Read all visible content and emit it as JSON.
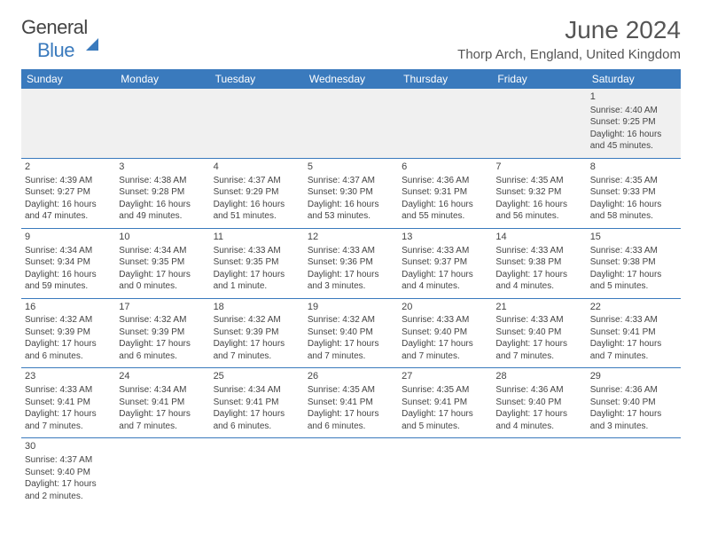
{
  "logo": {
    "text1": "General",
    "text2": "Blue"
  },
  "title": "June 2024",
  "location": "Thorp Arch, England, United Kingdom",
  "headers": [
    "Sunday",
    "Monday",
    "Tuesday",
    "Wednesday",
    "Thursday",
    "Friday",
    "Saturday"
  ],
  "colors": {
    "header_bg": "#3a7abd",
    "header_fg": "#ffffff",
    "rule": "#3a7abd",
    "text": "#444444",
    "firstrow_bg": "#f0f0f0"
  },
  "weeks": [
    [
      null,
      null,
      null,
      null,
      null,
      null,
      {
        "n": "1",
        "sr": "4:40 AM",
        "ss": "9:25 PM",
        "dl": "16 hours and 45 minutes."
      }
    ],
    [
      {
        "n": "2",
        "sr": "4:39 AM",
        "ss": "9:27 PM",
        "dl": "16 hours and 47 minutes."
      },
      {
        "n": "3",
        "sr": "4:38 AM",
        "ss": "9:28 PM",
        "dl": "16 hours and 49 minutes."
      },
      {
        "n": "4",
        "sr": "4:37 AM",
        "ss": "9:29 PM",
        "dl": "16 hours and 51 minutes."
      },
      {
        "n": "5",
        "sr": "4:37 AM",
        "ss": "9:30 PM",
        "dl": "16 hours and 53 minutes."
      },
      {
        "n": "6",
        "sr": "4:36 AM",
        "ss": "9:31 PM",
        "dl": "16 hours and 55 minutes."
      },
      {
        "n": "7",
        "sr": "4:35 AM",
        "ss": "9:32 PM",
        "dl": "16 hours and 56 minutes."
      },
      {
        "n": "8",
        "sr": "4:35 AM",
        "ss": "9:33 PM",
        "dl": "16 hours and 58 minutes."
      }
    ],
    [
      {
        "n": "9",
        "sr": "4:34 AM",
        "ss": "9:34 PM",
        "dl": "16 hours and 59 minutes."
      },
      {
        "n": "10",
        "sr": "4:34 AM",
        "ss": "9:35 PM",
        "dl": "17 hours and 0 minutes."
      },
      {
        "n": "11",
        "sr": "4:33 AM",
        "ss": "9:35 PM",
        "dl": "17 hours and 1 minute."
      },
      {
        "n": "12",
        "sr": "4:33 AM",
        "ss": "9:36 PM",
        "dl": "17 hours and 3 minutes."
      },
      {
        "n": "13",
        "sr": "4:33 AM",
        "ss": "9:37 PM",
        "dl": "17 hours and 4 minutes."
      },
      {
        "n": "14",
        "sr": "4:33 AM",
        "ss": "9:38 PM",
        "dl": "17 hours and 4 minutes."
      },
      {
        "n": "15",
        "sr": "4:33 AM",
        "ss": "9:38 PM",
        "dl": "17 hours and 5 minutes."
      }
    ],
    [
      {
        "n": "16",
        "sr": "4:32 AM",
        "ss": "9:39 PM",
        "dl": "17 hours and 6 minutes."
      },
      {
        "n": "17",
        "sr": "4:32 AM",
        "ss": "9:39 PM",
        "dl": "17 hours and 6 minutes."
      },
      {
        "n": "18",
        "sr": "4:32 AM",
        "ss": "9:39 PM",
        "dl": "17 hours and 7 minutes."
      },
      {
        "n": "19",
        "sr": "4:32 AM",
        "ss": "9:40 PM",
        "dl": "17 hours and 7 minutes."
      },
      {
        "n": "20",
        "sr": "4:33 AM",
        "ss": "9:40 PM",
        "dl": "17 hours and 7 minutes."
      },
      {
        "n": "21",
        "sr": "4:33 AM",
        "ss": "9:40 PM",
        "dl": "17 hours and 7 minutes."
      },
      {
        "n": "22",
        "sr": "4:33 AM",
        "ss": "9:41 PM",
        "dl": "17 hours and 7 minutes."
      }
    ],
    [
      {
        "n": "23",
        "sr": "4:33 AM",
        "ss": "9:41 PM",
        "dl": "17 hours and 7 minutes."
      },
      {
        "n": "24",
        "sr": "4:34 AM",
        "ss": "9:41 PM",
        "dl": "17 hours and 7 minutes."
      },
      {
        "n": "25",
        "sr": "4:34 AM",
        "ss": "9:41 PM",
        "dl": "17 hours and 6 minutes."
      },
      {
        "n": "26",
        "sr": "4:35 AM",
        "ss": "9:41 PM",
        "dl": "17 hours and 6 minutes."
      },
      {
        "n": "27",
        "sr": "4:35 AM",
        "ss": "9:41 PM",
        "dl": "17 hours and 5 minutes."
      },
      {
        "n": "28",
        "sr": "4:36 AM",
        "ss": "9:40 PM",
        "dl": "17 hours and 4 minutes."
      },
      {
        "n": "29",
        "sr": "4:36 AM",
        "ss": "9:40 PM",
        "dl": "17 hours and 3 minutes."
      }
    ],
    [
      {
        "n": "30",
        "sr": "4:37 AM",
        "ss": "9:40 PM",
        "dl": "17 hours and 2 minutes."
      },
      null,
      null,
      null,
      null,
      null,
      null
    ]
  ],
  "labels": {
    "sunrise": "Sunrise:",
    "sunset": "Sunset:",
    "daylight": "Daylight:"
  }
}
